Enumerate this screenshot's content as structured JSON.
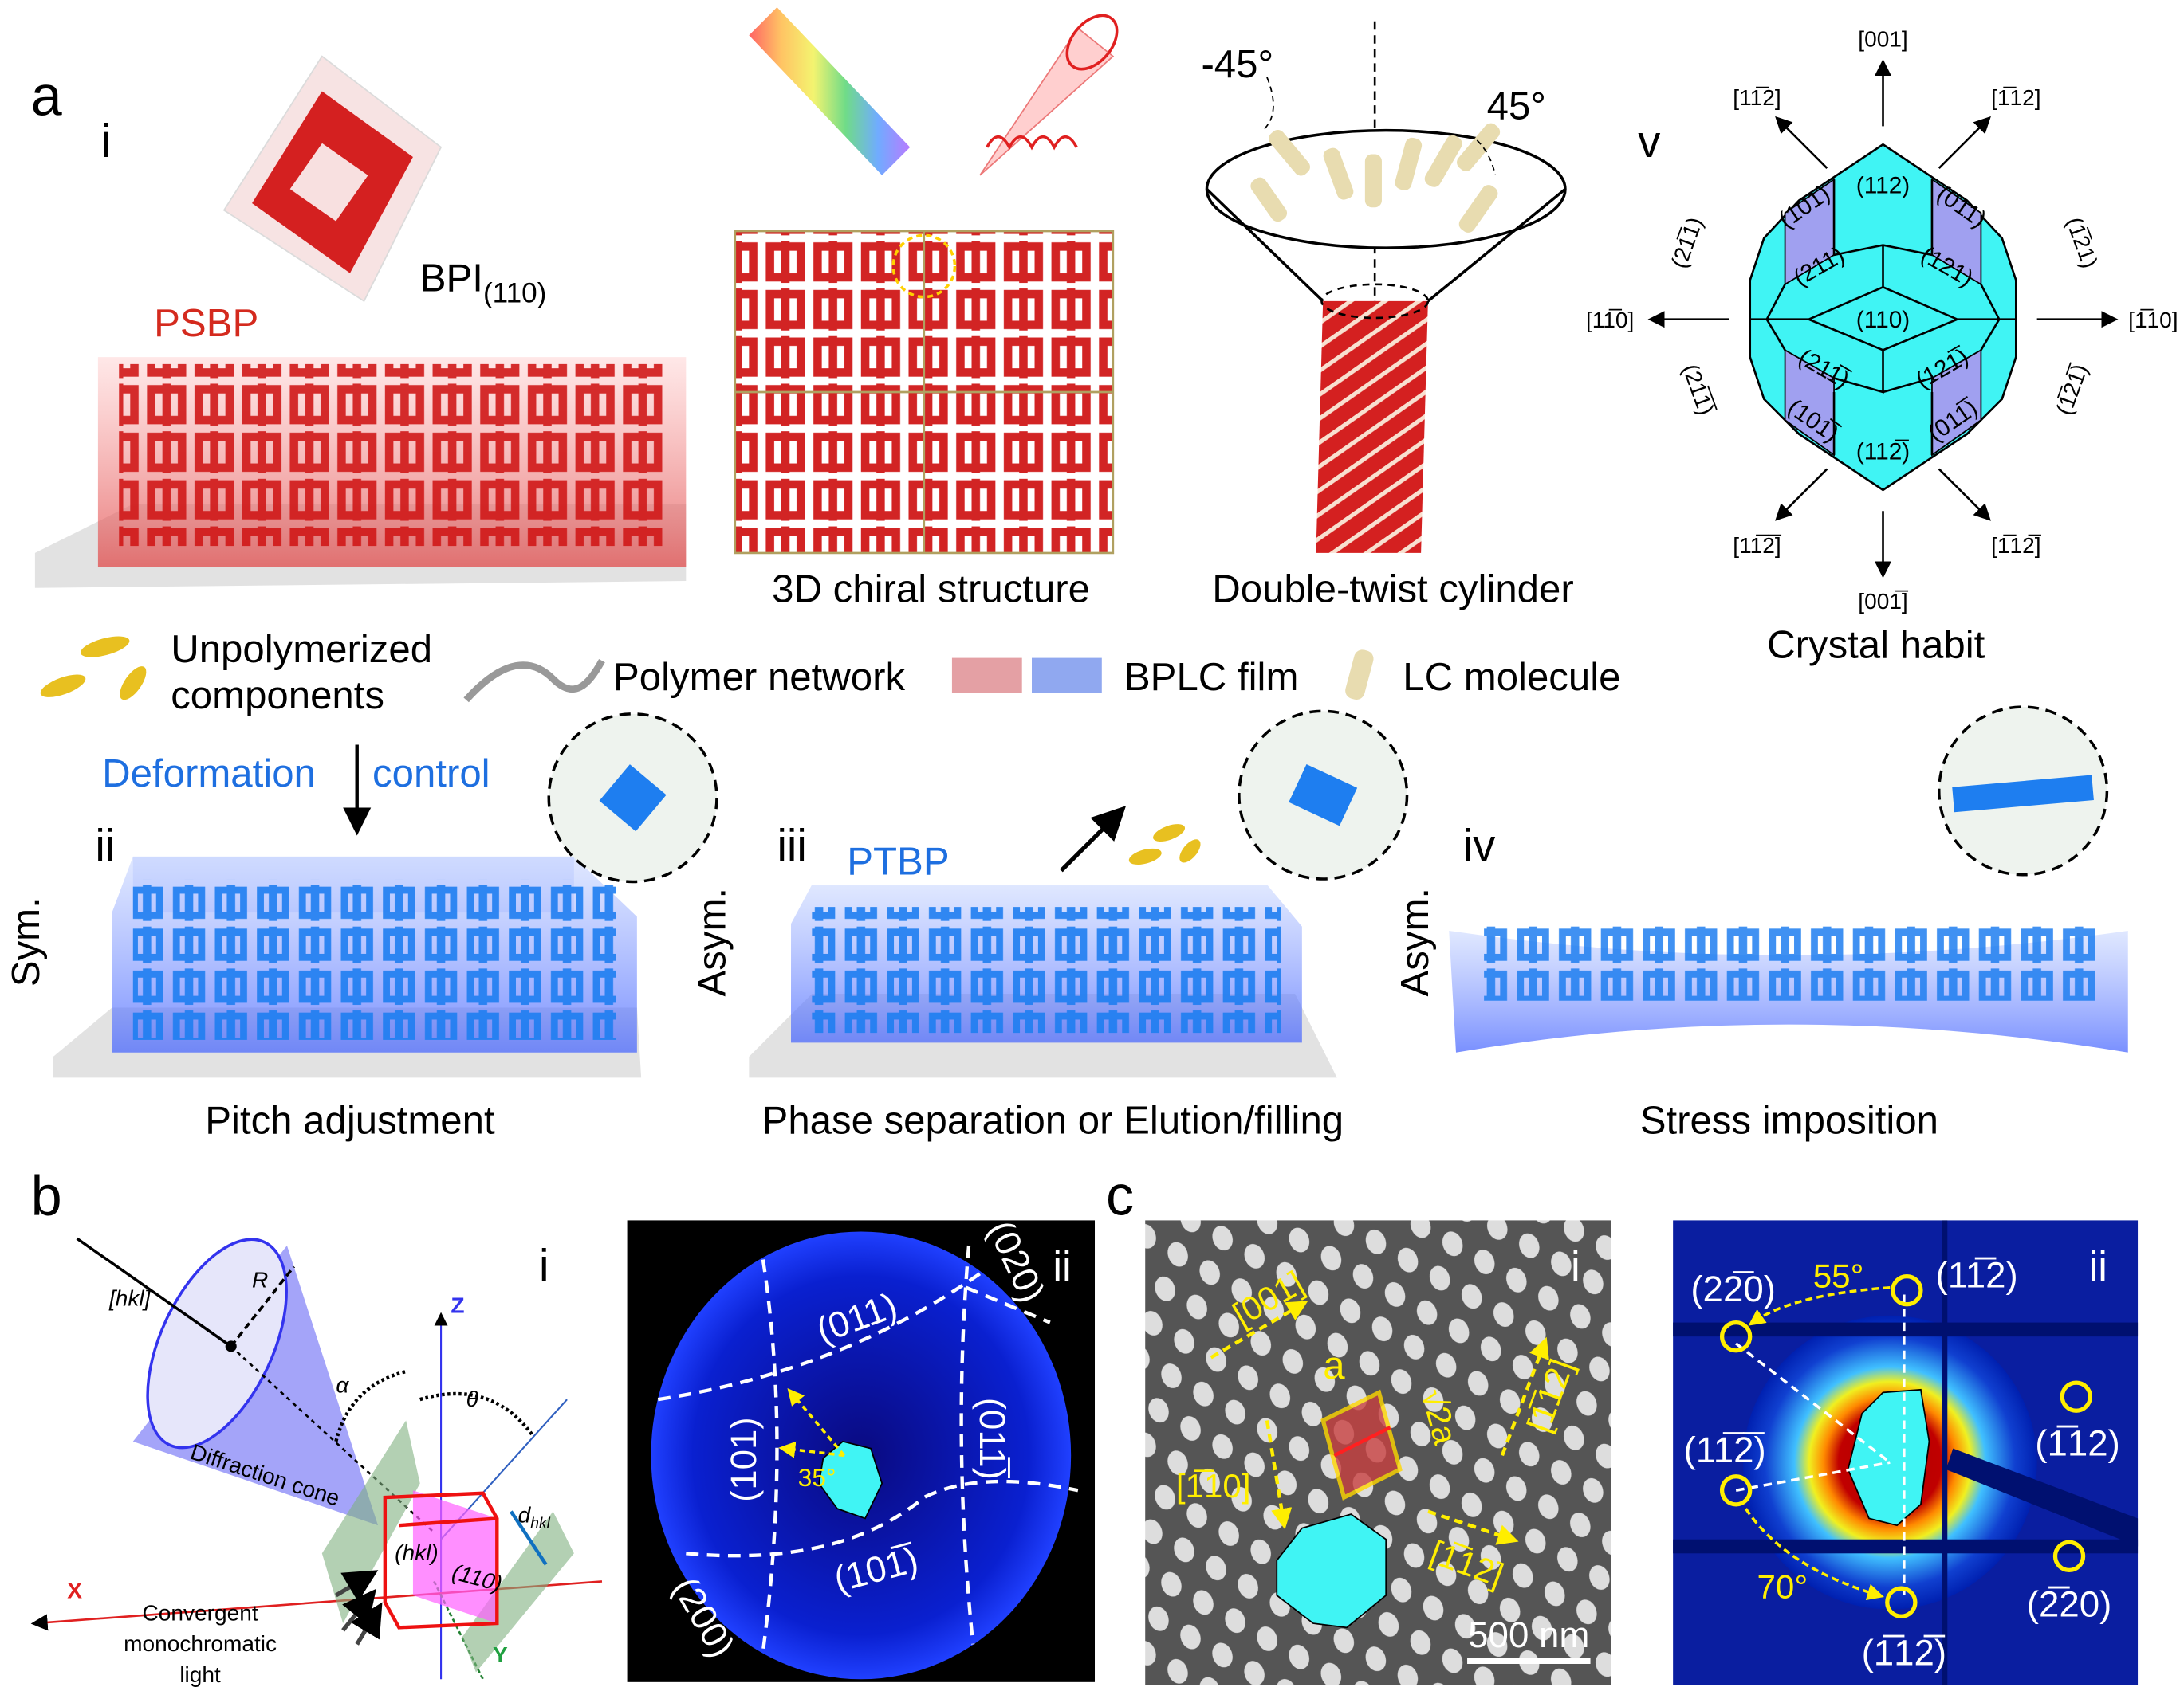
{
  "panel_labels": {
    "a": "a",
    "b": "b",
    "c": "c"
  },
  "colors": {
    "red": "#d42a1e",
    "blue": "#1e6fe0",
    "cyan": "#40f4f4",
    "lavender": "#a0a0f0",
    "yellow": "#ffee00",
    "accent_blue_text": "#1e6fe0",
    "psbp_red": "#d42a1e"
  },
  "a": {
    "i": {
      "numeral": "i",
      "bpi": "BPI",
      "bpi_sub": "(110)",
      "psbp": "PSBP"
    },
    "chiral_label": "3D chiral structure",
    "double_twist": {
      "label": "Double-twist cylinder",
      "angle_left": "-45°",
      "angle_right": "45°"
    },
    "v": {
      "numeral": "v",
      "title": "Crystal habit",
      "directions": {
        "top": "[001]",
        "top_left": "[11̅2]",
        "top_right": "[1̅12]",
        "left": "[11̅0]",
        "right": "[1̅10]",
        "bottom_left": "[11̅2̅]",
        "bottom_right": "[1̅12̅]",
        "bottom": "[001̅]"
      },
      "side_faces": {
        "upper_left": "(21̅1)",
        "upper_right": "(1̅21)",
        "lower_left": "(21̅1̅)",
        "lower_right": "(1̅21̅)"
      },
      "faces": {
        "f112": "(112)",
        "f101": "(101)",
        "f011": "(011)",
        "f211": "(211)",
        "f121": "(121)",
        "f110": "(110)",
        "f21m1": "(211̅)",
        "f12m1": "(121̅)",
        "f10m1": "(101̅)",
        "f01m1": "(011̅)",
        "f11m2": "(112̅)"
      }
    },
    "legend": {
      "unpolymerized": [
        "Unpolymerized",
        "components"
      ],
      "polymer": "Polymer network",
      "bplc": "BPLC film",
      "lc": "LC molecule"
    },
    "deformation": [
      "Deformation",
      "control"
    ],
    "ii": {
      "numeral": "ii",
      "side": "Sym.",
      "caption": "Pitch adjustment"
    },
    "iii": {
      "numeral": "iii",
      "side": "Asym.",
      "ptbp": "PTBP",
      "caption": "Phase separation or Elution/filling"
    },
    "iv": {
      "numeral": "iv",
      "side": "Asym.",
      "caption": "Stress imposition"
    }
  },
  "b": {
    "i": {
      "numeral": "i",
      "hkl_dir": "[hkl]",
      "R": "R",
      "alpha": "α",
      "theta": "θ",
      "cone": "Diffraction cone",
      "z": "Z",
      "x": "X",
      "y": "Y",
      "d": "d",
      "d_sub": "hkl",
      "plane_hkl": "(hkl)",
      "plane_110": "(110)",
      "light": [
        "Convergent",
        "monochromatic",
        "light"
      ]
    },
    "ii": {
      "numeral": "ii",
      "l020": "(020)",
      "l011": "(011)",
      "l101": "(101)",
      "l01m1": "(011̅)",
      "l10m1": "(101̅)",
      "l200": "(200)",
      "angle": "35°"
    }
  },
  "c": {
    "i": {
      "numeral": "i",
      "d001": "[001]",
      "a": "a",
      "sqrt2a": "√2a",
      "d_m1m12": "[1̅12]",
      "d_m110": "[1̅10]",
      "d_m112": "[1̅12]",
      "scale": "500 nm"
    },
    "ii": {
      "numeral": "ii",
      "p2m20": "(22̅0)",
      "a55": "55°",
      "p1m12": "(11̅2)",
      "pm112": "(1̅12)",
      "p1m1m2": "(11̅2̅)",
      "a70": "70°",
      "pm11m2": "(1̅12̅)",
      "pm220": "(2̅20)"
    }
  }
}
